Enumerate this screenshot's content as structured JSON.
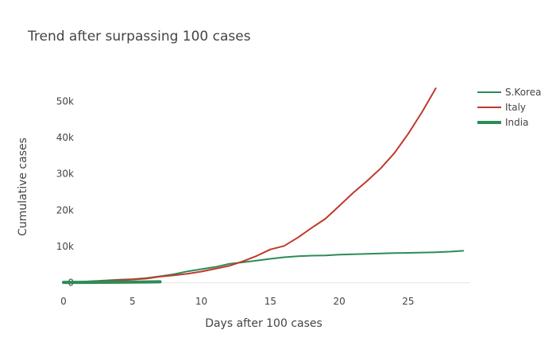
{
  "chart_data": {
    "type": "line",
    "title": "Trend after surpassing 100 cases",
    "xlabel": "Days after 100 cases",
    "ylabel": "Cumulative cases",
    "xlim": [
      0,
      29.5
    ],
    "ylim": [
      -2500,
      56000
    ],
    "x_ticks": [
      0,
      5,
      10,
      15,
      20,
      25
    ],
    "x_tick_labels": [
      "0",
      "5",
      "10",
      "15",
      "20",
      "25"
    ],
    "y_ticks": [
      0,
      10000,
      20000,
      30000,
      40000,
      50000
    ],
    "y_tick_labels": [
      "0",
      "10k",
      "20k",
      "30k",
      "40k",
      "50k"
    ],
    "grid": false,
    "legend_position": "top-right",
    "series": [
      {
        "name": "S.Korea",
        "color": "#2e8b57",
        "width": 2,
        "x": [
          0,
          1,
          2,
          3,
          4,
          5,
          6,
          7,
          8,
          9,
          10,
          11,
          12,
          13,
          14,
          15,
          16,
          17,
          18,
          19,
          20,
          21,
          22,
          23,
          24,
          25,
          26,
          27,
          28,
          29
        ],
        "y": [
          104,
          204,
          433,
          602,
          833,
          977,
          1261,
          1766,
          2337,
          3150,
          3736,
          4335,
          5186,
          5621,
          6088,
          6593,
          7041,
          7313,
          7478,
          7513,
          7755,
          7869,
          7979,
          8086,
          8162,
          8236,
          8320,
          8413,
          8565,
          8799
        ]
      },
      {
        "name": "Italy",
        "color": "#c0392b",
        "width": 2,
        "x": [
          0,
          1,
          2,
          3,
          4,
          5,
          6,
          7,
          8,
          9,
          10,
          11,
          12,
          13,
          14,
          15,
          16,
          17,
          18,
          19,
          20,
          21,
          22,
          23,
          24,
          25,
          26,
          27
        ],
        "y": [
          155,
          229,
          322,
          453,
          655,
          888,
          1128,
          1694,
          2036,
          2502,
          3089,
          3858,
          4636,
          5883,
          7375,
          9172,
          10149,
          12462,
          15113,
          17660,
          21157,
          24747,
          27980,
          31506,
          35713,
          41035,
          47021,
          53578
        ]
      },
      {
        "name": "India",
        "color": "#2e8b57",
        "width": 4,
        "x": [
          0,
          1,
          2,
          3,
          4,
          5,
          6,
          7
        ],
        "y": [
          100,
          107,
          114,
          137,
          151,
          173,
          223,
          258
        ]
      }
    ]
  }
}
